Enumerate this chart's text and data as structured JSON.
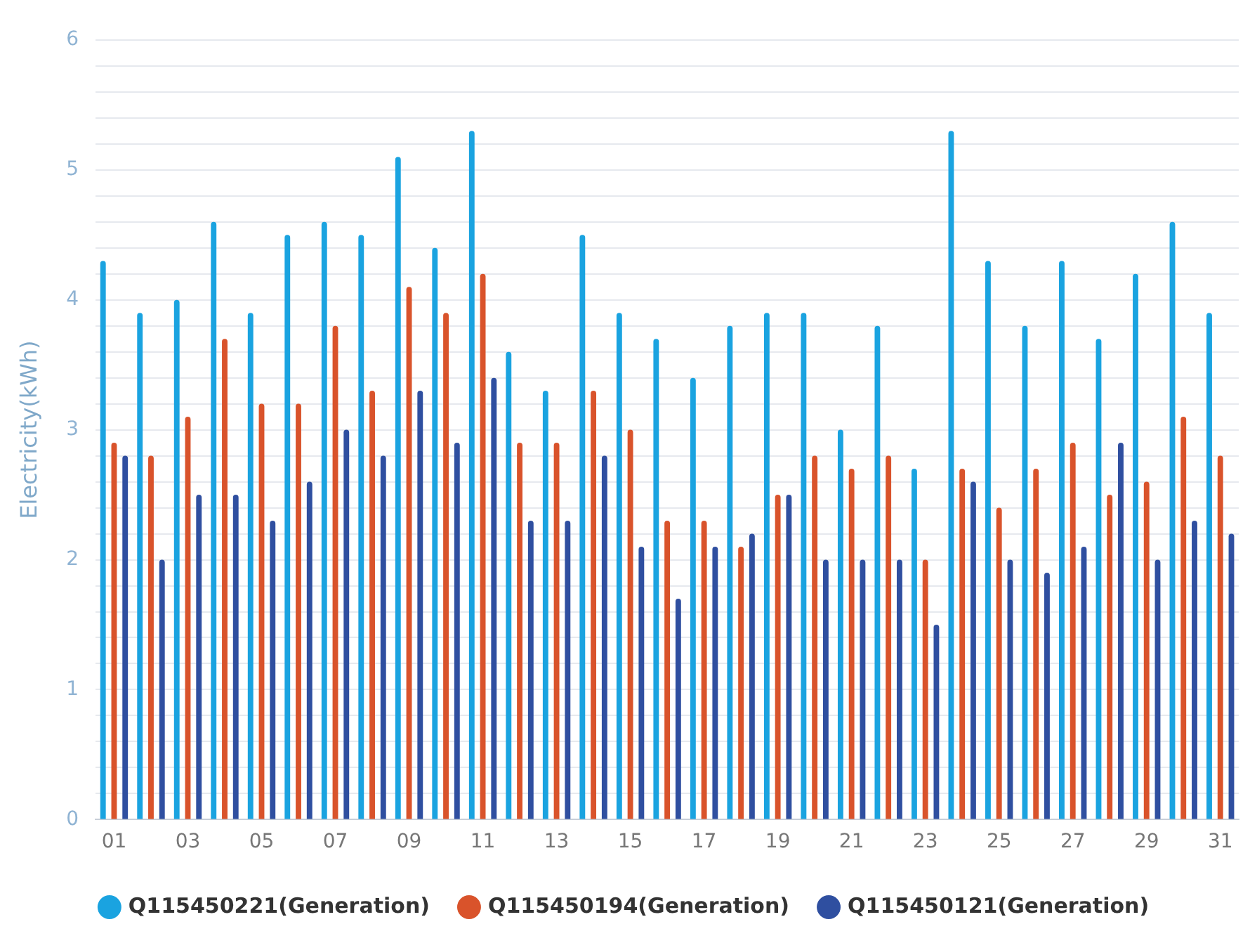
{
  "chart_data": {
    "type": "bar",
    "ylabel": "Electricity(kWh)",
    "categories": [
      "01",
      null,
      "03",
      null,
      "05",
      null,
      "07",
      null,
      "09",
      null,
      "11",
      null,
      "13",
      null,
      "15",
      null,
      "17",
      null,
      "19",
      null,
      "21",
      null,
      "23",
      null,
      "25",
      null,
      "27",
      null,
      "29",
      null,
      "31"
    ],
    "series": [
      {
        "name": "Q115450221(Generation)",
        "color": "#1aa3e0",
        "values": [
          4.3,
          3.9,
          4.0,
          4.6,
          3.9,
          4.5,
          4.6,
          4.5,
          5.1,
          4.4,
          5.3,
          3.6,
          3.3,
          4.5,
          3.9,
          3.7,
          3.4,
          3.8,
          3.9,
          3.9,
          3.0,
          3.8,
          2.7,
          5.3,
          4.3,
          3.8,
          4.3,
          3.7,
          4.2,
          4.6,
          3.9
        ]
      },
      {
        "name": "Q115450194(Generation)",
        "color": "#d9532b",
        "values": [
          2.9,
          2.8,
          3.1,
          3.7,
          3.2,
          3.2,
          3.8,
          3.3,
          4.1,
          3.9,
          4.2,
          2.9,
          2.9,
          3.3,
          3.0,
          2.3,
          2.3,
          2.1,
          2.5,
          2.8,
          2.7,
          2.8,
          2.0,
          2.7,
          2.4,
          2.7,
          2.9,
          2.5,
          2.6,
          3.1,
          2.8
        ]
      },
      {
        "name": "Q115450121(Generation)",
        "color": "#2f4fa0",
        "values": [
          2.8,
          2.0,
          2.5,
          2.5,
          2.3,
          2.6,
          3.0,
          2.8,
          3.3,
          2.9,
          3.4,
          2.3,
          2.3,
          2.8,
          2.1,
          1.7,
          2.1,
          2.2,
          2.5,
          2.0,
          2.0,
          2.0,
          1.5,
          2.6,
          2.0,
          1.9,
          2.1,
          2.9,
          2.0,
          2.3,
          2.2
        ]
      }
    ],
    "ylim": [
      0,
      6
    ],
    "yticks": [
      0,
      {
        "value": 0.2,
        "label": null
      },
      {
        "value": 0.4,
        "label": null
      },
      {
        "value": 0.6,
        "label": null
      },
      {
        "value": 0.8,
        "label": null
      },
      1,
      {
        "value": 1.2,
        "label": null
      },
      {
        "value": 1.4,
        "label": null
      },
      {
        "value": 1.6,
        "label": null
      },
      {
        "value": 1.8,
        "label": null
      },
      2,
      {
        "value": 2.2,
        "label": null
      },
      {
        "value": 2.4,
        "label": null
      },
      {
        "value": 2.6,
        "label": null
      },
      {
        "value": 2.8,
        "label": null
      },
      3,
      {
        "value": 3.2,
        "label": null
      },
      {
        "value": 3.4,
        "label": null
      },
      {
        "value": 3.6,
        "label": null
      },
      {
        "value": 3.8,
        "label": null
      },
      4,
      {
        "value": 4.2,
        "label": null
      },
      {
        "value": 4.4,
        "label": null
      },
      {
        "value": 4.6,
        "label": null
      },
      {
        "value": 4.8,
        "label": null
      },
      5,
      {
        "value": 5.2,
        "label": null
      },
      {
        "value": 5.4,
        "label": null
      },
      {
        "value": 5.6,
        "label": null
      },
      {
        "value": 5.8,
        "label": null
      },
      6
    ],
    "grid": "y",
    "legend": "bottom"
  }
}
